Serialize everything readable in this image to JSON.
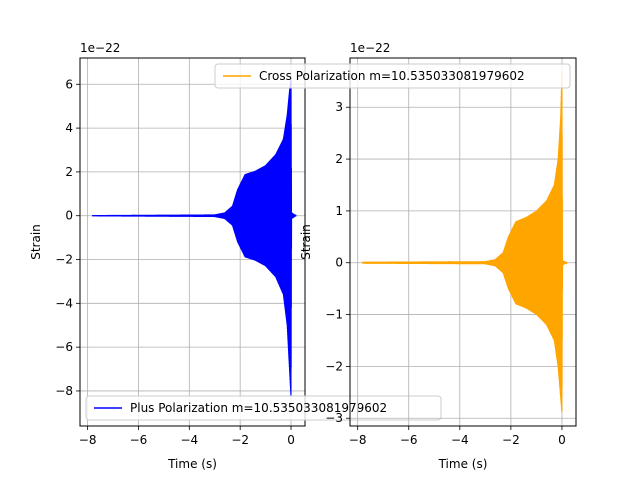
{
  "chart_data": [
    {
      "type": "line",
      "offset_label": "1e−22",
      "xlabel": "Time (s)",
      "ylabel": "Strain",
      "xlim": [
        -8.3,
        0.55
      ],
      "ylim": [
        -9.6,
        7.2
      ],
      "xticks": [
        -8,
        -6,
        -4,
        -2,
        0
      ],
      "yticks": [
        -8,
        -6,
        -4,
        -2,
        0,
        2,
        4,
        6
      ],
      "xtick_labels": [
        "−8",
        "−6",
        "−4",
        "−2",
        "0"
      ],
      "ytick_labels": [
        "−8",
        "−6",
        "−4",
        "−2",
        "0",
        "2",
        "4",
        "6"
      ],
      "grid": true,
      "legend_position": "lower-left",
      "series": [
        {
          "name": "Plus Polarization m=10.535033081979602",
          "color": "#0000ff",
          "envelope": {
            "x": [
              -7.8,
              -3.0,
              -2.6,
              -2.3,
              -2.1,
              -1.8,
              -1.4,
              -1.0,
              -0.6,
              -0.3,
              -0.15,
              -0.05,
              0.0,
              0.02,
              0.2
            ],
            "upper": [
              0.03,
              0.06,
              0.15,
              0.45,
              1.2,
              1.9,
              2.05,
              2.3,
              2.8,
              3.5,
              4.6,
              5.8,
              6.2,
              0.15,
              0.0
            ],
            "lower": [
              -0.03,
              -0.06,
              -0.15,
              -0.45,
              -1.2,
              -1.9,
              -2.05,
              -2.3,
              -2.8,
              -3.6,
              -5.0,
              -7.2,
              -8.3,
              -0.15,
              0.0
            ]
          }
        }
      ]
    },
    {
      "type": "line",
      "offset_label": "1e−22",
      "xlabel": "Time (s)",
      "ylabel": "Strain",
      "xlim": [
        -8.3,
        0.55
      ],
      "ylim": [
        -3.15,
        3.95
      ],
      "xticks": [
        -8,
        -6,
        -4,
        -2,
        0
      ],
      "yticks": [
        -3,
        -2,
        -1,
        0,
        1,
        2,
        3
      ],
      "xtick_labels": [
        "−8",
        "−6",
        "−4",
        "−2",
        "0"
      ],
      "ytick_labels": [
        "−3",
        "−2",
        "−1",
        "0",
        "1",
        "2",
        "3"
      ],
      "grid": true,
      "legend_position": "top-right",
      "series": [
        {
          "name": "Cross Polarization m=10.535033081979602",
          "color": "#ffa500",
          "envelope": {
            "x": [
              -7.8,
              -3.0,
              -2.6,
              -2.3,
              -2.1,
              -1.8,
              -1.4,
              -1.0,
              -0.6,
              -0.3,
              -0.15,
              -0.05,
              0.0,
              0.02,
              0.2
            ],
            "upper": [
              0.02,
              0.03,
              0.07,
              0.2,
              0.5,
              0.8,
              0.88,
              1.0,
              1.2,
              1.5,
              2.0,
              2.8,
              3.7,
              0.05,
              0.0
            ],
            "lower": [
              -0.02,
              -0.03,
              -0.07,
              -0.2,
              -0.5,
              -0.8,
              -0.88,
              -1.0,
              -1.2,
              -1.5,
              -2.0,
              -2.6,
              -2.9,
              -0.05,
              0.0
            ]
          }
        }
      ]
    }
  ]
}
